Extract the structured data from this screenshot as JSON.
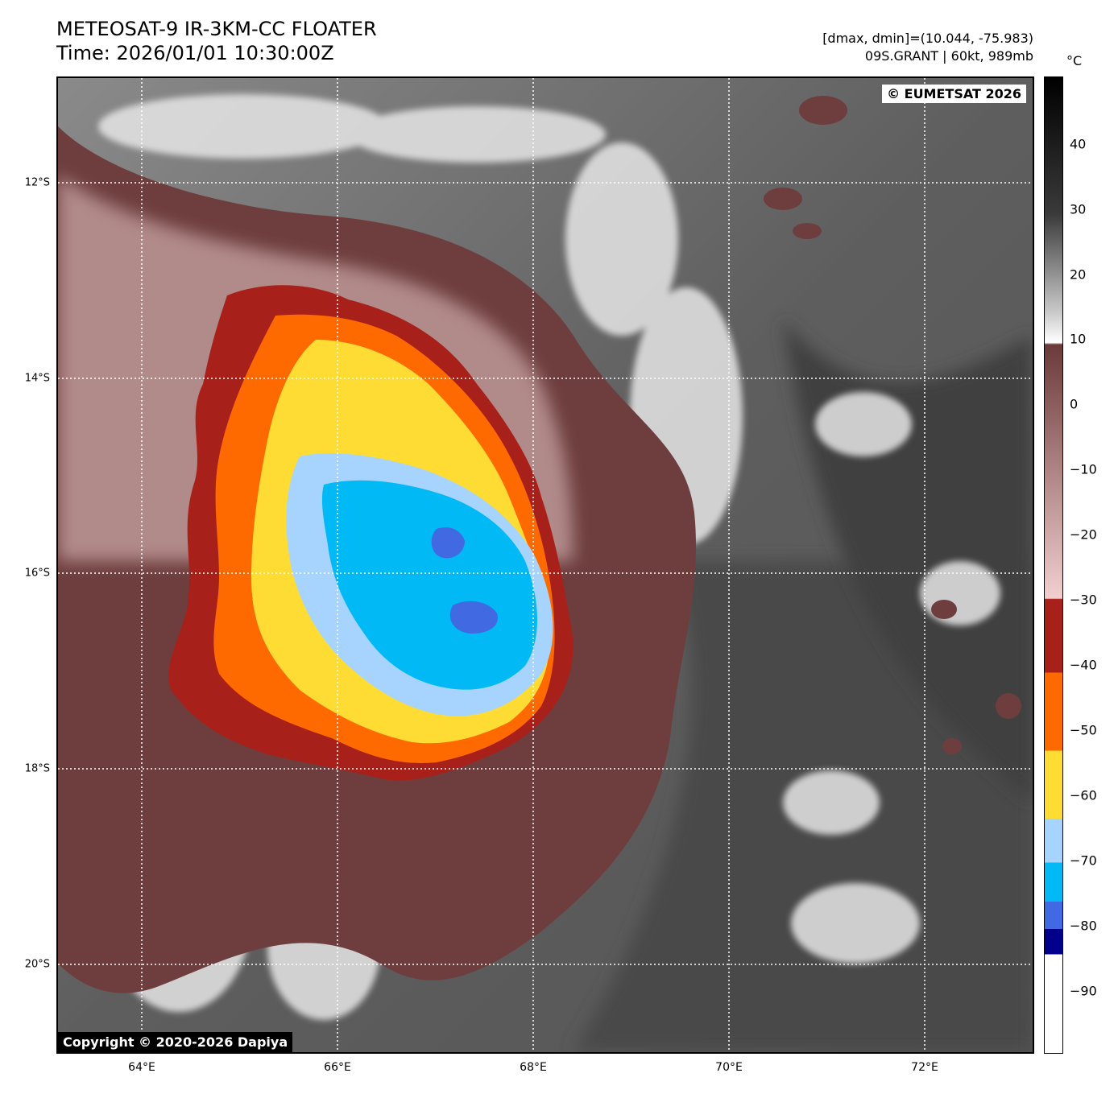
{
  "header": {
    "title_line1": "METEOSAT-9 IR-3KM-CC FLOATER",
    "title_line2": "Time: 2026/01/01 10:30:00Z",
    "dminmax": "[dmax, dmin]=(10.044, -75.983)",
    "storm_info": "09S.GRANT | 60kt, 989mb"
  },
  "map": {
    "copyright_top": "© EUMETSAT 2026",
    "copyright_bottom": "Copyright © 2020-2026 Dapiya",
    "lat_labels": [
      "12°S",
      "14°S",
      "16°S",
      "18°S",
      "20°S"
    ],
    "lon_labels": [
      "64°E",
      "66°E",
      "68°E",
      "70°E",
      "72°E"
    ]
  },
  "colorbar": {
    "unit": "°C",
    "ticks": [
      "40",
      "30",
      "20",
      "10",
      "0",
      "−10",
      "−20",
      "−30",
      "−40",
      "−50",
      "−60",
      "−70",
      "−80",
      "−90"
    ],
    "colors": {
      "black": "#000000",
      "gray_dark": "#3a3a3a",
      "gray_light": "#c8c8c8",
      "white": "#ffffff",
      "brown": "#6b3a3a",
      "pink": "#f2cfcf",
      "darkred": "#a8201a",
      "orange": "#ff6a00",
      "yellow": "#ffdc33",
      "lightblue": "#a6d4ff",
      "cyan": "#00b9f5",
      "royalblue": "#4169e1",
      "navy": "#00008b"
    }
  }
}
